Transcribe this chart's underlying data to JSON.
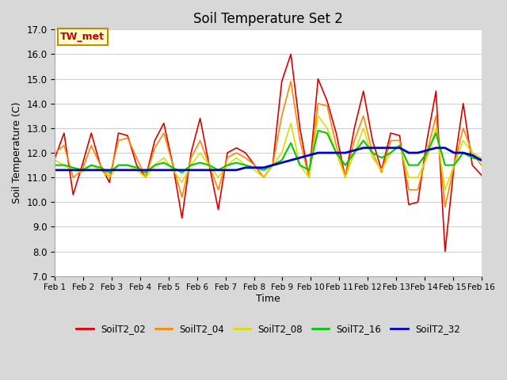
{
  "title": "Soil Temperature Set 2",
  "xlabel": "Time",
  "ylabel": "Soil Temperature (C)",
  "ylim": [
    7.0,
    17.0
  ],
  "yticks": [
    7.0,
    8.0,
    9.0,
    10.0,
    11.0,
    12.0,
    13.0,
    14.0,
    15.0,
    16.0,
    17.0
  ],
  "xtick_labels": [
    "Feb 1",
    "Feb 2",
    "Feb 3",
    "Feb 4",
    "Feb 5",
    "Feb 6",
    "Feb 7",
    "Feb 8",
    "Feb 9",
    "Feb 10",
    "Feb 11",
    "Feb 12",
    "Feb 13",
    "Feb 14",
    "Feb 15",
    "Feb 16"
  ],
  "annotation_text": "TW_met",
  "annotation_bg": "#ffffcc",
  "annotation_border": "#cc8800",
  "annotation_text_color": "#cc0000",
  "fig_bg": "#d8d8d8",
  "plot_bg": "#ffffff",
  "grid_color": "#d0d0d0",
  "series": {
    "SoilT2_02": {
      "color": "#dd0000",
      "lw": 1.2,
      "data": [
        11.8,
        12.8,
        10.3,
        11.5,
        12.8,
        11.5,
        10.8,
        12.8,
        12.7,
        11.5,
        11.0,
        12.5,
        13.2,
        11.5,
        9.35,
        12.0,
        13.4,
        11.5,
        9.7,
        12.0,
        12.2,
        12.0,
        11.5,
        11.0,
        11.5,
        14.9,
        16.0,
        13.0,
        11.0,
        15.0,
        14.1,
        12.8,
        11.0,
        13.0,
        14.5,
        12.5,
        11.3,
        12.8,
        12.7,
        9.9,
        10.0,
        12.5,
        14.5,
        8.0,
        11.5,
        14.0,
        11.5,
        11.1
      ]
    },
    "SoilT2_04": {
      "color": "#ff8800",
      "lw": 1.2,
      "data": [
        12.0,
        12.3,
        11.0,
        11.3,
        12.3,
        11.5,
        11.0,
        12.5,
        12.6,
        11.8,
        11.0,
        12.2,
        12.8,
        11.5,
        10.2,
        11.8,
        12.5,
        11.5,
        10.5,
        11.8,
        12.0,
        11.8,
        11.5,
        11.0,
        11.5,
        13.5,
        14.9,
        12.5,
        11.0,
        14.0,
        13.9,
        12.3,
        11.0,
        12.5,
        13.5,
        12.0,
        11.2,
        12.5,
        12.5,
        10.5,
        10.5,
        12.0,
        13.5,
        9.8,
        11.5,
        13.0,
        12.0,
        11.5
      ]
    },
    "SoilT2_08": {
      "color": "#dddd00",
      "lw": 1.2,
      "data": [
        11.7,
        11.5,
        11.3,
        11.2,
        11.5,
        11.3,
        11.0,
        11.5,
        11.5,
        11.3,
        11.0,
        11.5,
        11.8,
        11.3,
        10.8,
        11.5,
        12.0,
        11.5,
        11.0,
        11.5,
        11.8,
        11.5,
        11.3,
        11.0,
        11.5,
        12.0,
        13.2,
        11.5,
        11.0,
        13.5,
        13.0,
        12.0,
        11.0,
        12.0,
        13.0,
        11.8,
        11.3,
        12.0,
        12.3,
        11.0,
        11.0,
        11.8,
        13.0,
        10.5,
        11.5,
        12.5,
        12.0,
        11.8
      ]
    },
    "SoilT2_16": {
      "color": "#00cc00",
      "lw": 1.5,
      "data": [
        11.5,
        11.5,
        11.4,
        11.3,
        11.5,
        11.4,
        11.2,
        11.5,
        11.5,
        11.4,
        11.2,
        11.5,
        11.6,
        11.4,
        11.2,
        11.5,
        11.6,
        11.5,
        11.3,
        11.5,
        11.6,
        11.5,
        11.4,
        11.3,
        11.5,
        11.7,
        12.4,
        11.5,
        11.3,
        12.9,
        12.8,
        12.0,
        11.5,
        12.0,
        12.5,
        12.0,
        11.8,
        12.0,
        12.3,
        11.5,
        11.5,
        12.0,
        12.8,
        11.5,
        11.5,
        12.0,
        11.8,
        11.7
      ]
    },
    "SoilT2_32": {
      "color": "#0000cc",
      "lw": 2.0,
      "data": [
        11.3,
        11.3,
        11.3,
        11.3,
        11.3,
        11.3,
        11.3,
        11.3,
        11.3,
        11.3,
        11.3,
        11.3,
        11.3,
        11.3,
        11.3,
        11.3,
        11.3,
        11.3,
        11.3,
        11.3,
        11.3,
        11.4,
        11.4,
        11.4,
        11.5,
        11.6,
        11.7,
        11.8,
        11.9,
        12.0,
        12.0,
        12.0,
        12.0,
        12.1,
        12.2,
        12.2,
        12.2,
        12.2,
        12.2,
        12.0,
        12.0,
        12.1,
        12.2,
        12.2,
        12.0,
        12.0,
        11.9,
        11.7
      ]
    }
  }
}
